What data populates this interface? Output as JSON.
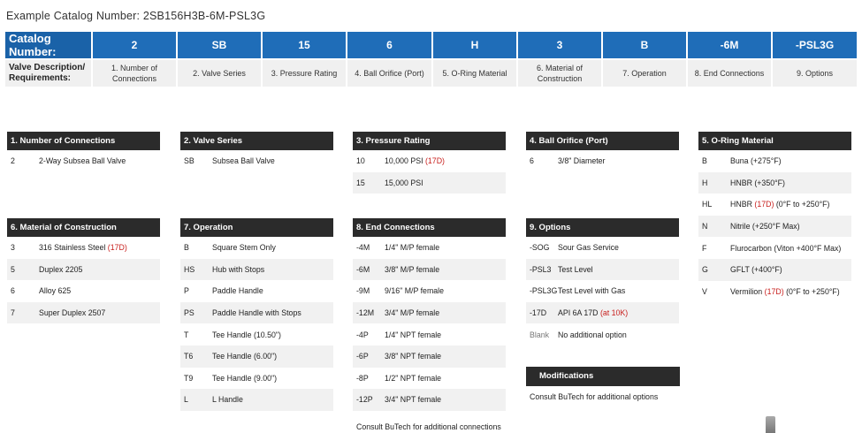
{
  "example": "Example Catalog Number: 2SB156H3B-6M-PSL3G",
  "catalog": {
    "head_label": "Catalog Number:",
    "codes": [
      "2",
      "SB",
      "15",
      "6",
      "H",
      "3",
      "B",
      "-6M",
      "-PSL3G"
    ],
    "desc_label": "Valve Description/ Requirements:",
    "descs": [
      "1. Number of Connections",
      "2. Valve Series",
      "3. Pressure Rating",
      "4. Ball Orifice (Port)",
      "5. O-Ring Material",
      "6. Material of Construction",
      "7. Operation",
      "8. End Connections",
      "9. Options"
    ]
  },
  "sections": {
    "s1": {
      "title": "1.  Number of Connections",
      "rows": [
        {
          "c": "2",
          "d": "2-Way Subsea Ball Valve"
        }
      ]
    },
    "s2": {
      "title": "2.  Valve Series",
      "rows": [
        {
          "c": "SB",
          "d": "Subsea Ball Valve"
        }
      ]
    },
    "s3": {
      "title": "3.  Pressure Rating",
      "rows": [
        {
          "c": "10",
          "d": "10,000 PSI",
          "r": "(17D)"
        },
        {
          "c": "15",
          "d": "15,000 PSI"
        }
      ]
    },
    "s4": {
      "title": "4.  Ball Orifice  (Port)",
      "rows": [
        {
          "c": "6",
          "d": "3/8\" Diameter"
        }
      ]
    },
    "s5": {
      "title": "5.  O-Ring Material",
      "rows": [
        {
          "c": "B",
          "d": "Buna  (+275°F)"
        },
        {
          "c": "H",
          "d": "HNBR  (+350°F)"
        },
        {
          "c": "HL",
          "d": "HNBR",
          "r": "(17D)",
          "d2": "(0°F to +250°F)"
        },
        {
          "c": "N",
          "d": "Nitrile  (+250°F Max)"
        },
        {
          "c": "F",
          "d": "Flurocarbon  (Viton +400°F Max)"
        },
        {
          "c": "G",
          "d": "GFLT  (+400°F)"
        },
        {
          "c": "V",
          "d": "Vermilion",
          "r": "(17D)",
          "d2": "(0°F to +250°F)"
        }
      ]
    },
    "s6": {
      "title": "6.  Material of Construction",
      "rows": [
        {
          "c": "3",
          "d": "316 Stainless Steel",
          "r": "(17D)"
        },
        {
          "c": "5",
          "d": "Duplex 2205"
        },
        {
          "c": "6",
          "d": "Alloy 625"
        },
        {
          "c": "7",
          "d": "Super Duplex 2507"
        }
      ]
    },
    "s7": {
      "title": "7.  Operation",
      "rows": [
        {
          "c": "B",
          "d": "Square Stem Only"
        },
        {
          "c": "HS",
          "d": "Hub with Stops"
        },
        {
          "c": "P",
          "d": "Paddle Handle"
        },
        {
          "c": "PS",
          "d": "Paddle Handle with Stops"
        },
        {
          "c": "T",
          "d": "Tee Handle (10.50\")"
        },
        {
          "c": "T6",
          "d": "Tee Handle (6.00\")"
        },
        {
          "c": "T9",
          "d": "Tee Handle (9.00\")"
        },
        {
          "c": "L",
          "d": "L Handle"
        }
      ]
    },
    "s8": {
      "title": "8.  End Connections",
      "rows": [
        {
          "c": "-4M",
          "d": "1/4\" M/P female"
        },
        {
          "c": "-6M",
          "d": "3/8\" M/P female"
        },
        {
          "c": "-9M",
          "d": "9/16\" M/P female"
        },
        {
          "c": "-12M",
          "d": "3/4\" M/P female"
        },
        {
          "c": "-4P",
          "d": "1/4\" NPT female"
        },
        {
          "c": "-6P",
          "d": "3/8\" NPT female"
        },
        {
          "c": "-8P",
          "d": "1/2\" NPT female"
        },
        {
          "c": "-12P",
          "d": "3/4\" NPT female"
        }
      ],
      "note": "Consult BuTech for additional connections"
    },
    "s9": {
      "title": "9.  Options",
      "rows": [
        {
          "c": "-SOG",
          "d": "Sour Gas Service"
        },
        {
          "c": "-PSL3",
          "d": "Test Level"
        },
        {
          "c": "-PSL3G",
          "d": "Test Level with Gas"
        },
        {
          "c": "-17D",
          "d": "API 6A 17D",
          "r": "(at 10K)"
        },
        {
          "c": "Blank",
          "d": "No additional option",
          "grey": true
        }
      ]
    }
  },
  "modifications": {
    "title": "Modifications",
    "note": "Consult BuTech for additional options"
  }
}
